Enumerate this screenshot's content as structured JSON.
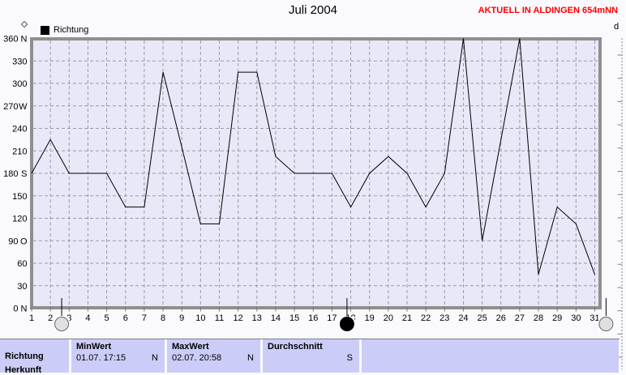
{
  "header": {
    "title": "Juli 2004",
    "station_banner": "AKTUELL IN ALDINGEN 654mNN"
  },
  "legend": {
    "label": "Richtung"
  },
  "right_axis_fragment": {
    "label": "d"
  },
  "chart_data": {
    "type": "line",
    "title": "Juli 2004",
    "xlabel": "",
    "ylabel": "",
    "x": [
      1,
      2,
      3,
      4,
      5,
      6,
      7,
      8,
      9,
      10,
      11,
      12,
      13,
      14,
      15,
      16,
      17,
      18,
      19,
      20,
      21,
      22,
      23,
      24,
      25,
      26,
      27,
      28,
      29,
      30,
      31
    ],
    "series": [
      {
        "name": "Richtung",
        "color": "#000000",
        "values": [
          180,
          225,
          180,
          180,
          180,
          135,
          135,
          315,
          215,
          112.5,
          112.5,
          315,
          315,
          202.5,
          180,
          180,
          180,
          135,
          180,
          202.5,
          180,
          135,
          180,
          360,
          90,
          225,
          360,
          45,
          135,
          112.5,
          45
        ]
      }
    ],
    "ylim": [
      0,
      360
    ],
    "ytick_step": 30,
    "y_ticks": [
      {
        "value": 360,
        "compass": "N"
      },
      {
        "value": 330,
        "compass": ""
      },
      {
        "value": 300,
        "compass": ""
      },
      {
        "value": 270,
        "compass": "W"
      },
      {
        "value": 240,
        "compass": ""
      },
      {
        "value": 210,
        "compass": ""
      },
      {
        "value": 180,
        "compass": "S"
      },
      {
        "value": 150,
        "compass": ""
      },
      {
        "value": 120,
        "compass": ""
      },
      {
        "value": 90,
        "compass": "O"
      },
      {
        "value": 60,
        "compass": ""
      },
      {
        "value": 30,
        "compass": ""
      },
      {
        "value": 0,
        "compass": "N"
      }
    ],
    "grid": true,
    "legend_position": "top-left",
    "moon_markers": [
      {
        "day": 2.6,
        "phase": "full"
      },
      {
        "day": 17.8,
        "phase": "new"
      },
      {
        "day": 31.6,
        "phase": "full"
      }
    ]
  },
  "summary_table": {
    "row_label": "Richtung",
    "clipped_next_row_label": "Herkunft",
    "columns": [
      {
        "header": "MinWert",
        "value": "01.07.  17:15",
        "direction": "N"
      },
      {
        "header": "MaxWert",
        "value": "02.07.  20:58",
        "direction": "N"
      },
      {
        "header": "Durchschnitt",
        "value": "S"
      }
    ]
  },
  "colors": {
    "banner_red": "#FF0000",
    "plot_bg": "#E8E8F8",
    "page_bg": "#F9F9FE",
    "grid": "#9A9AA8",
    "axis_border": "#8F8F8F",
    "table_cell": "#CCCCF8",
    "line": "#000000"
  }
}
